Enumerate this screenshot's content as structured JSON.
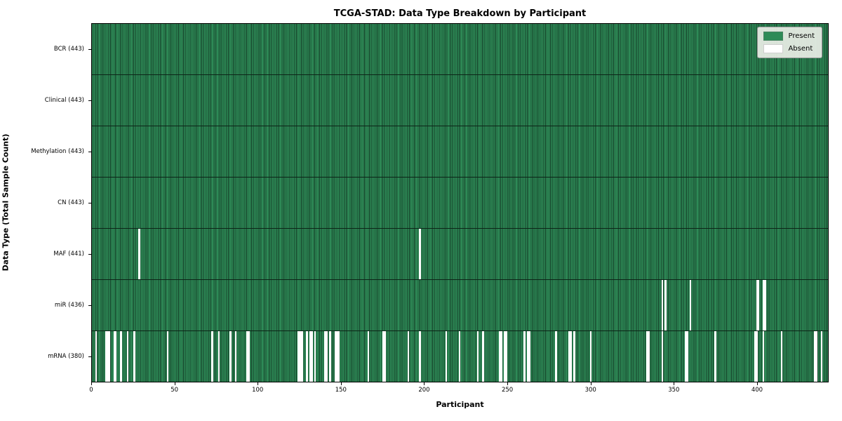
{
  "chart_data": {
    "type": "heatmap",
    "title": "TCGA-STAD: Data Type Breakdown by Participant",
    "xlabel": "Participant",
    "ylabel": "Data Type (Total Sample Count)",
    "n_participants": 443,
    "x_ticks": [
      0,
      50,
      100,
      150,
      200,
      250,
      300,
      350,
      400
    ],
    "x_range": [
      0,
      443
    ],
    "grid": false,
    "legend_position": "upper right",
    "colors": {
      "present": "#2e8b57",
      "present_edge": "#143d27",
      "absent": "#ffffff",
      "row_separator": "#0c2417",
      "plot_border": "#000000"
    },
    "legend": [
      {
        "label": "Present",
        "color": "#2e8b57"
      },
      {
        "label": "Absent",
        "color": "#ffffff"
      }
    ],
    "rows": [
      {
        "label": "BCR (443)",
        "data_type": "BCR",
        "total": 443,
        "absent": []
      },
      {
        "label": "Clinical (443)",
        "data_type": "Clinical",
        "total": 443,
        "absent": []
      },
      {
        "label": "Methylation (443)",
        "data_type": "Methylation",
        "total": 443,
        "absent": []
      },
      {
        "label": "CN (443)",
        "data_type": "CN",
        "total": 443,
        "absent": []
      },
      {
        "label": "MAF (441)",
        "data_type": "MAF",
        "total": 441,
        "absent": [
          28,
          197
        ]
      },
      {
        "label": "miR (436)",
        "data_type": "miR",
        "total": 436,
        "absent": [
          343,
          345,
          360,
          400,
          401,
          404,
          405
        ]
      },
      {
        "label": "mRNA (380)",
        "data_type": "mRNA",
        "total": 380,
        "absent": [
          2,
          8,
          9,
          10,
          13,
          14,
          17,
          21,
          25,
          45,
          72,
          76,
          83,
          86,
          93,
          94,
          124,
          125,
          126,
          129,
          131,
          132,
          134,
          140,
          141,
          143,
          146,
          147,
          148,
          166,
          175,
          176,
          190,
          197,
          213,
          221,
          232,
          235,
          245,
          246,
          248,
          249,
          260,
          262,
          263,
          279,
          287,
          288,
          290,
          300,
          334,
          335,
          343,
          357,
          358,
          375,
          399,
          400,
          404,
          415,
          435,
          436,
          439
        ]
      }
    ]
  }
}
